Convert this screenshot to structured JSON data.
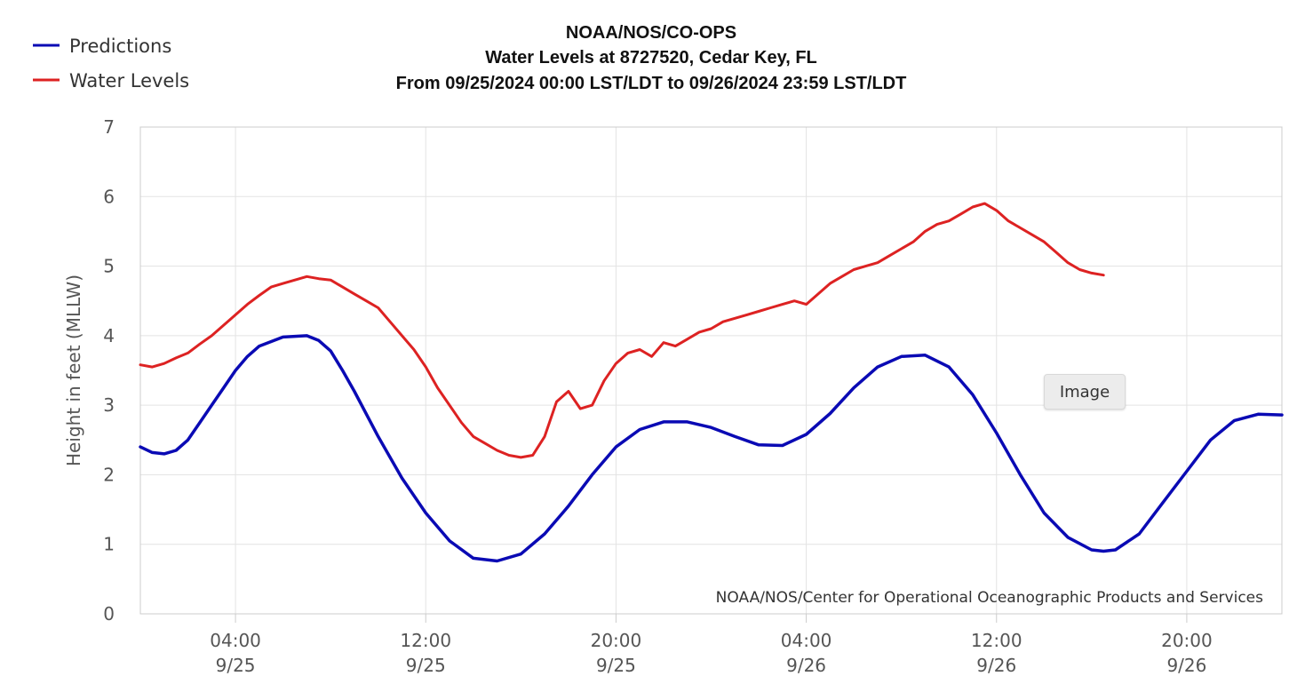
{
  "chart_data": {
    "type": "line",
    "title_lines": [
      "NOAA/NOS/CO-OPS",
      "Water Levels at 8727520, Cedar Key, FL",
      "From 09/25/2024 00:00 LST/LDT to 09/26/2024 23:59 LST/LDT"
    ],
    "ylabel": "Height in feet (MLLW)",
    "xlabel": "",
    "ylim": [
      0,
      7
    ],
    "yticks": [
      0,
      1,
      2,
      3,
      4,
      5,
      6,
      7
    ],
    "x_unit": "hours since 09/25/2024 00:00",
    "xlim": [
      0,
      48
    ],
    "xticks": [
      {
        "hour": 4,
        "time": "04:00",
        "date": "9/25"
      },
      {
        "hour": 12,
        "time": "12:00",
        "date": "9/25"
      },
      {
        "hour": 20,
        "time": "20:00",
        "date": "9/25"
      },
      {
        "hour": 28,
        "time": "04:00",
        "date": "9/26"
      },
      {
        "hour": 36,
        "time": "12:00",
        "date": "9/26"
      },
      {
        "hour": 44,
        "time": "20:00",
        "date": "9/26"
      }
    ],
    "grid": true,
    "legend_position": "top-left",
    "series": [
      {
        "name": "Predictions",
        "color": "#0a0ab4",
        "points": [
          [
            0,
            2.4
          ],
          [
            0.5,
            2.32
          ],
          [
            1,
            2.3
          ],
          [
            1.5,
            2.35
          ],
          [
            2,
            2.5
          ],
          [
            2.5,
            2.75
          ],
          [
            3,
            3.0
          ],
          [
            3.5,
            3.25
          ],
          [
            4,
            3.5
          ],
          [
            4.5,
            3.7
          ],
          [
            5,
            3.85
          ],
          [
            6,
            3.98
          ],
          [
            7,
            4.0
          ],
          [
            7.5,
            3.93
          ],
          [
            8,
            3.78
          ],
          [
            8.5,
            3.5
          ],
          [
            9,
            3.2
          ],
          [
            10,
            2.55
          ],
          [
            11,
            1.95
          ],
          [
            12,
            1.45
          ],
          [
            13,
            1.05
          ],
          [
            14,
            0.8
          ],
          [
            15,
            0.76
          ],
          [
            16,
            0.86
          ],
          [
            17,
            1.15
          ],
          [
            18,
            1.55
          ],
          [
            19,
            2.0
          ],
          [
            20,
            2.4
          ],
          [
            21,
            2.65
          ],
          [
            22,
            2.76
          ],
          [
            23,
            2.76
          ],
          [
            24,
            2.68
          ],
          [
            25,
            2.55
          ],
          [
            26,
            2.43
          ],
          [
            27,
            2.42
          ],
          [
            28,
            2.58
          ],
          [
            29,
            2.88
          ],
          [
            30,
            3.25
          ],
          [
            31,
            3.55
          ],
          [
            32,
            3.7
          ],
          [
            33,
            3.72
          ],
          [
            34,
            3.55
          ],
          [
            35,
            3.15
          ],
          [
            36,
            2.6
          ],
          [
            37,
            2.0
          ],
          [
            38,
            1.45
          ],
          [
            39,
            1.1
          ],
          [
            40,
            0.92
          ],
          [
            40.5,
            0.9
          ],
          [
            41,
            0.92
          ],
          [
            42,
            1.15
          ],
          [
            43,
            1.6
          ],
          [
            44,
            2.05
          ],
          [
            45,
            2.5
          ],
          [
            46,
            2.78
          ],
          [
            47,
            2.87
          ],
          [
            48,
            2.86
          ]
        ]
      },
      {
        "name": "Water Levels",
        "color": "#dd2222",
        "points": [
          [
            0,
            3.58
          ],
          [
            0.5,
            3.55
          ],
          [
            1,
            3.6
          ],
          [
            1.5,
            3.68
          ],
          [
            2,
            3.75
          ],
          [
            2.5,
            3.88
          ],
          [
            3,
            4.0
          ],
          [
            3.5,
            4.15
          ],
          [
            4,
            4.3
          ],
          [
            4.5,
            4.45
          ],
          [
            5,
            4.58
          ],
          [
            5.5,
            4.7
          ],
          [
            6,
            4.75
          ],
          [
            6.5,
            4.8
          ],
          [
            7,
            4.85
          ],
          [
            7.5,
            4.82
          ],
          [
            8,
            4.8
          ],
          [
            8.5,
            4.7
          ],
          [
            9,
            4.6
          ],
          [
            9.5,
            4.5
          ],
          [
            10,
            4.4
          ],
          [
            10.5,
            4.2
          ],
          [
            11,
            4.0
          ],
          [
            11.5,
            3.8
          ],
          [
            12,
            3.55
          ],
          [
            12.5,
            3.25
          ],
          [
            13,
            3.0
          ],
          [
            13.5,
            2.75
          ],
          [
            14,
            2.55
          ],
          [
            14.5,
            2.45
          ],
          [
            15,
            2.35
          ],
          [
            15.5,
            2.28
          ],
          [
            16,
            2.25
          ],
          [
            16.5,
            2.28
          ],
          [
            17,
            2.55
          ],
          [
            17.5,
            3.05
          ],
          [
            18,
            3.2
          ],
          [
            18.5,
            2.95
          ],
          [
            19,
            3.0
          ],
          [
            19.5,
            3.35
          ],
          [
            20,
            3.6
          ],
          [
            20.5,
            3.75
          ],
          [
            21,
            3.8
          ],
          [
            21.5,
            3.7
          ],
          [
            22,
            3.9
          ],
          [
            22.5,
            3.85
          ],
          [
            23,
            3.95
          ],
          [
            23.5,
            4.05
          ],
          [
            24,
            4.1
          ],
          [
            24.5,
            4.2
          ],
          [
            25,
            4.25
          ],
          [
            25.5,
            4.3
          ],
          [
            26,
            4.35
          ],
          [
            26.5,
            4.4
          ],
          [
            27,
            4.45
          ],
          [
            27.5,
            4.5
          ],
          [
            28,
            4.45
          ],
          [
            28.5,
            4.6
          ],
          [
            29,
            4.75
          ],
          [
            29.5,
            4.85
          ],
          [
            30,
            4.95
          ],
          [
            30.5,
            5.0
          ],
          [
            31,
            5.05
          ],
          [
            31.5,
            5.15
          ],
          [
            32,
            5.25
          ],
          [
            32.5,
            5.35
          ],
          [
            33,
            5.5
          ],
          [
            33.5,
            5.6
          ],
          [
            34,
            5.65
          ],
          [
            34.5,
            5.75
          ],
          [
            35,
            5.85
          ],
          [
            35.5,
            5.9
          ],
          [
            36,
            5.8
          ],
          [
            36.5,
            5.65
          ],
          [
            37,
            5.55
          ],
          [
            37.5,
            5.45
          ],
          [
            38,
            5.35
          ],
          [
            38.5,
            5.2
          ],
          [
            39,
            5.05
          ],
          [
            39.5,
            4.95
          ],
          [
            40,
            4.9
          ],
          [
            40.5,
            4.87
          ]
        ]
      }
    ],
    "annotation": "NOAA/NOS/Center for Operational Oceanographic Products and Services"
  },
  "overlay_badge": "Image"
}
